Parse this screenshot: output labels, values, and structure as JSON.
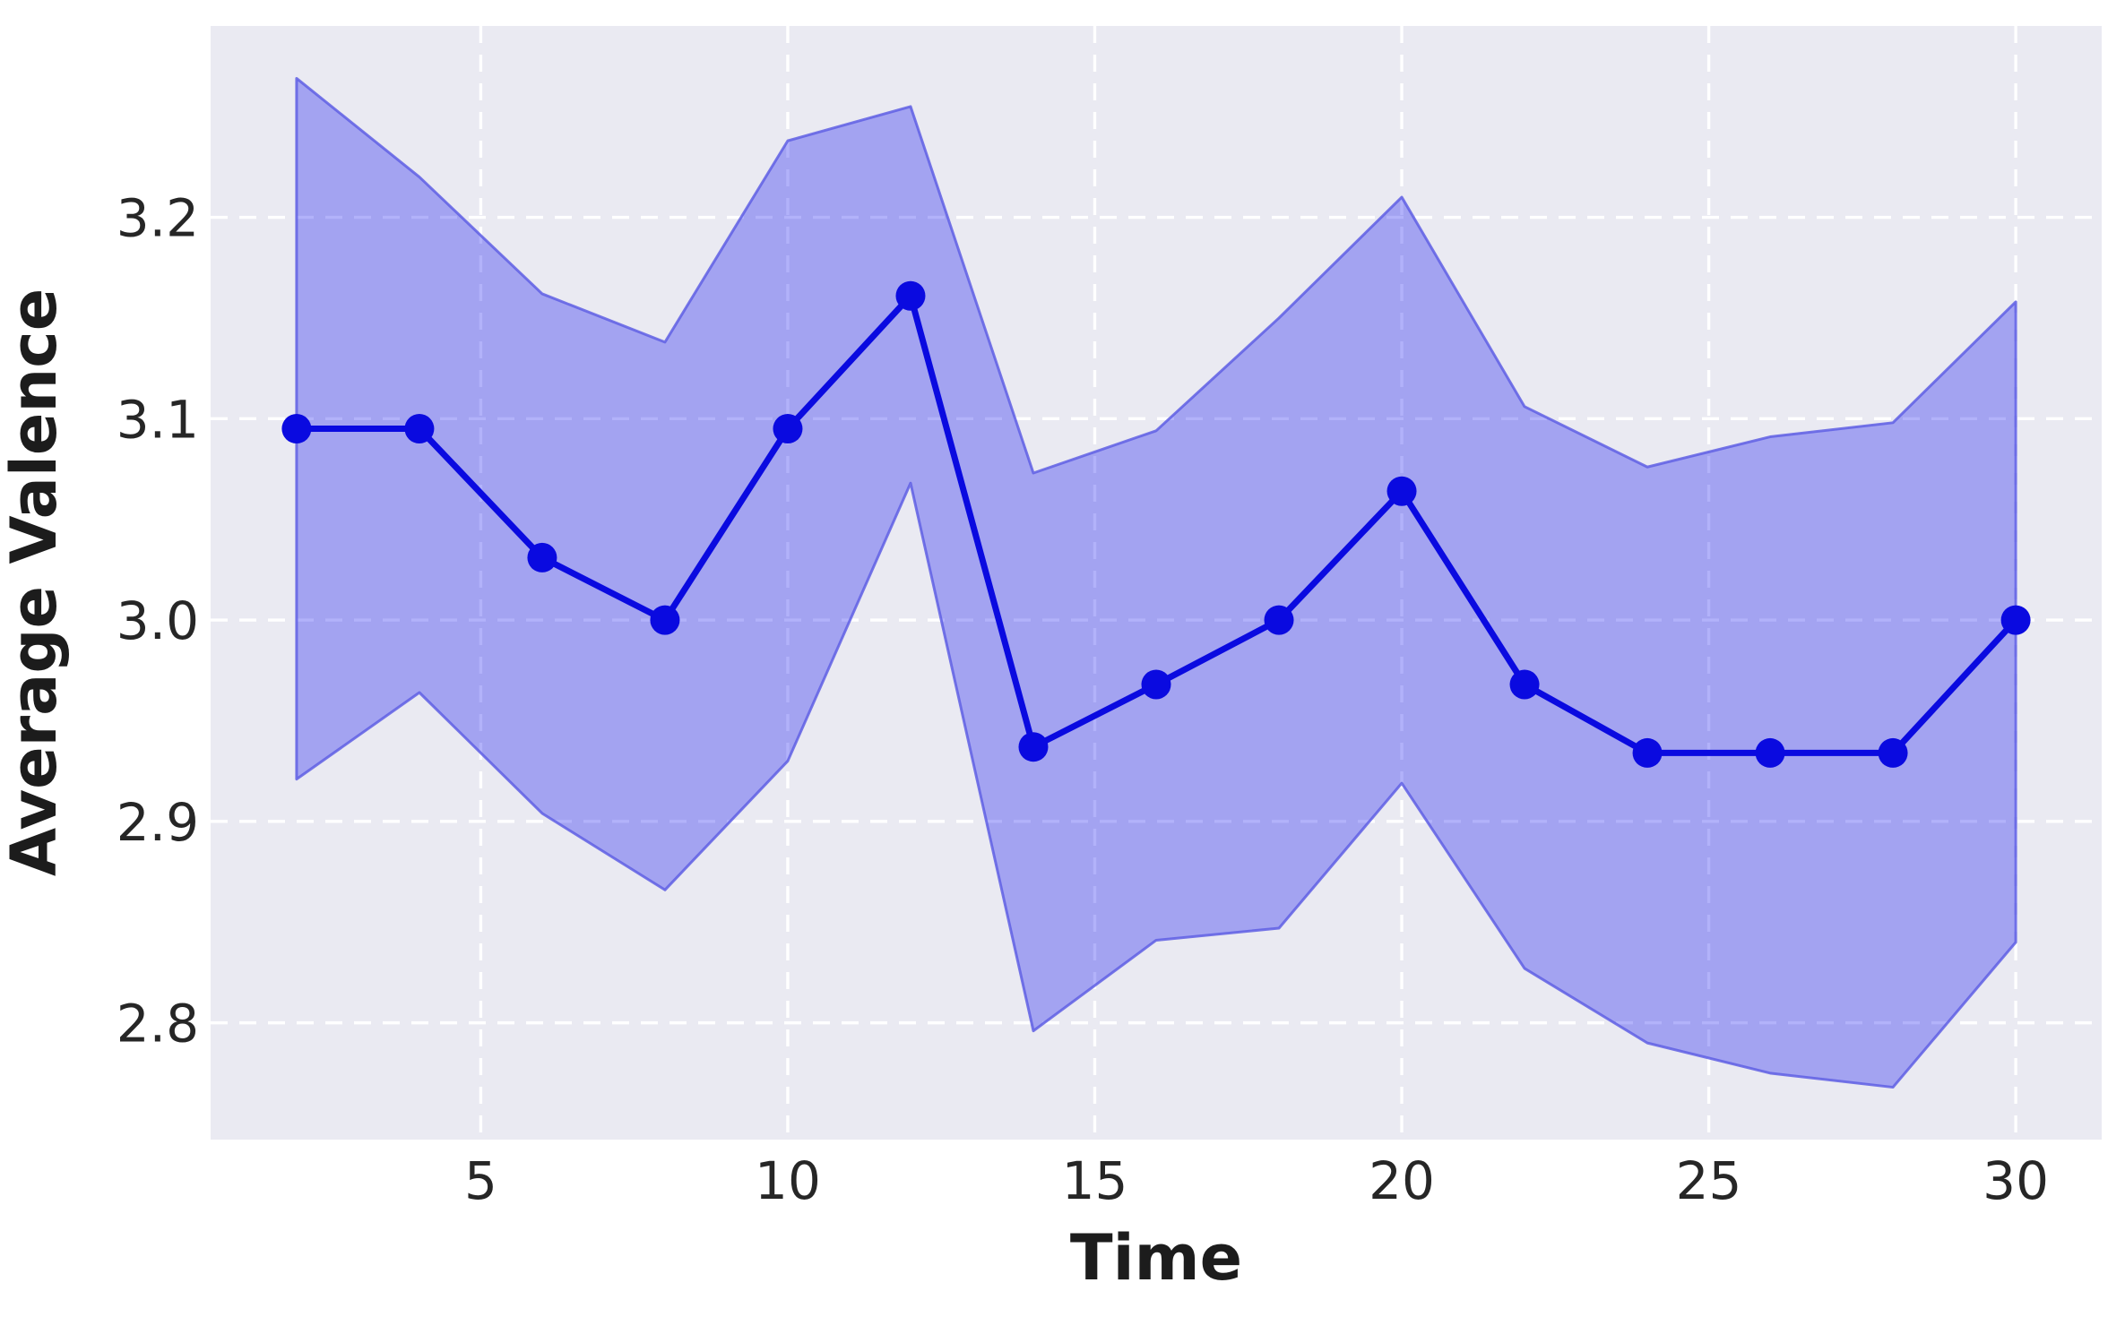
{
  "chart_data": {
    "type": "line",
    "title": "",
    "xlabel": "Time",
    "ylabel": "Average Valence",
    "x": [
      2,
      4,
      6,
      8,
      10,
      12,
      14,
      16,
      18,
      20,
      22,
      24,
      26,
      28,
      30
    ],
    "series": [
      {
        "name": "average-valence-mean",
        "values": [
          3.095,
          3.095,
          3.031,
          3.0,
          3.095,
          3.161,
          2.937,
          2.968,
          3.0,
          3.064,
          2.968,
          2.934,
          2.934,
          2.934,
          3.0
        ]
      }
    ],
    "band": {
      "name": "confidence-interval",
      "upper": [
        3.269,
        3.22,
        3.162,
        3.138,
        3.238,
        3.255,
        3.073,
        3.094,
        3.15,
        3.21,
        3.106,
        3.076,
        3.091,
        3.098,
        3.158
      ],
      "lower": [
        2.921,
        2.964,
        2.904,
        2.866,
        2.93,
        3.068,
        2.796,
        2.841,
        2.847,
        2.919,
        2.827,
        2.79,
        2.775,
        2.768,
        2.84
      ]
    },
    "xticks": [
      5,
      10,
      15,
      20,
      25,
      30
    ],
    "yticks": [
      3.2,
      3.1,
      3.0,
      2.9,
      2.8
    ],
    "ytick_labels": [
      "3.2",
      "3.1",
      "3.0",
      "2.9",
      "2.8"
    ],
    "xlim": [
      0.6,
      31.4
    ],
    "ylim": [
      2.742,
      3.295
    ],
    "grid": true,
    "legend_position": "none",
    "colors": {
      "line": "#0a0ae0",
      "marker": "#0a0ae0",
      "band_fill": "rgba(0,0,238,0.30)",
      "band_edge": "rgba(95,95,228,0.85)",
      "plot_bg": "#eaeaf2",
      "figure_bg": "#ffffff",
      "grid": "#ffffff",
      "tick_color": "#262626",
      "label_color": "#1c1c1c"
    }
  }
}
